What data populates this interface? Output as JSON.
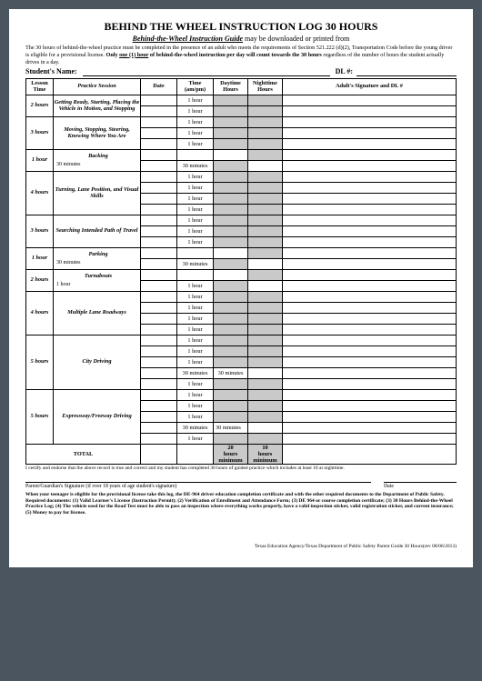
{
  "title": "BEHIND THE WHEEL INSTRUCTION LOG 30 HOURS",
  "subtitle_pre": "Behind-the-Wheel Instruction Guide",
  "subtitle_post": " may be downloaded or printed from",
  "intro": "The 30 hours of behind-the-wheel practice must be completed in the presence of an adult who meets the requirements of Section 521.222 (d)(2), Transportation Code before the young driver is eligible for a provisional license.  Only one (1) hour of behind-the-wheel instruction per day will count towards the 30 hours regardless of the number of hours the student actually drives in a day.",
  "student_name_label": "Student's Name:",
  "dl_label": "DL #:",
  "headers": {
    "lesson": "Lesson Time",
    "session": "Practice Session",
    "date": "Date",
    "time": "Time (am/pm)",
    "day": "Daytime Hours",
    "night": "Nighttime Hours",
    "sig": "Adult's Signature and DL #"
  },
  "lessons": [
    {
      "time": "2 hours",
      "title": "Getting Ready, Starting, Placing the Vehicle in Motion, and Stopping",
      "rows": [
        {
          "t": "1 hour",
          "d": true,
          "n": true
        },
        {
          "t": "1 hour",
          "d": true,
          "n": true
        }
      ]
    },
    {
      "time": "3 hours",
      "title": "Moving, Stopping, Steering, Knowing Where You Are",
      "rows": [
        {
          "t": "1 hour",
          "d": true,
          "n": true
        },
        {
          "t": "1 hour",
          "d": true,
          "n": true
        },
        {
          "t": "1 hour",
          "d": true,
          "n": true
        }
      ]
    },
    {
      "time": "1 hour",
      "title": "Backing",
      "sub": "30 minutes",
      "rows": [
        {
          "t": "",
          "d": false,
          "n": true
        },
        {
          "t": "30 minutes",
          "d": true,
          "n": false
        }
      ]
    },
    {
      "time": "4 hours",
      "title": "Turning, Lane Position, and Visual Skills",
      "rows": [
        {
          "t": "1 hour",
          "d": true,
          "n": true
        },
        {
          "t": "1 hour",
          "d": true,
          "n": true
        },
        {
          "t": "1 hour",
          "d": true,
          "n": true
        },
        {
          "t": "1 hour",
          "d": true,
          "n": true
        }
      ]
    },
    {
      "time": "3 hours",
      "title": "Searching Intended Path of Travel",
      "rows": [
        {
          "t": "1 hour",
          "d": true,
          "n": true
        },
        {
          "t": "1 hour",
          "d": true,
          "n": true
        },
        {
          "t": "1 hour",
          "d": true,
          "n": true
        }
      ]
    },
    {
      "time": "1 hour",
      "title": "Parking",
      "sub": "30 minutes",
      "rows": [
        {
          "t": "",
          "d": false,
          "n": true
        },
        {
          "t": "30 minutes",
          "d": true,
          "n": false
        }
      ]
    },
    {
      "time": "2 hours",
      "title": "Turnabouts",
      "sub": "1 hour",
      "rows": [
        {
          "t": "",
          "d": false,
          "n": true
        },
        {
          "t": "1 hour",
          "d": true,
          "n": false
        }
      ]
    },
    {
      "time": "4 hours",
      "title": "Multiple Lane Roadways",
      "rows": [
        {
          "t": "1 hour",
          "d": true,
          "n": true
        },
        {
          "t": "1 hour",
          "d": true,
          "n": true
        },
        {
          "t": "1 hour",
          "d": true,
          "n": true
        },
        {
          "t": "1 hour",
          "d": true,
          "n": true
        }
      ]
    },
    {
      "time": "5 hours",
      "title": "City Driving",
      "rows": [
        {
          "t": "1 hour",
          "d": true,
          "n": true
        },
        {
          "t": "1 hour",
          "d": true,
          "n": true
        },
        {
          "t": "1 hour",
          "d": true,
          "n": true
        },
        {
          "t": "30 minutes",
          "t2": "30 minutes",
          "d": false,
          "n": false
        },
        {
          "t": "1 hour",
          "d": true,
          "n": true
        }
      ]
    },
    {
      "time": "5 hours",
      "title": "Expressway/Freeway Driving",
      "rows": [
        {
          "t": "1 hour",
          "d": true,
          "n": true
        },
        {
          "t": "1 hour",
          "d": true,
          "n": true
        },
        {
          "t": "1 hour",
          "d": true,
          "n": true
        },
        {
          "t": "30 minutes",
          "t2": "30 minutes",
          "spread": true,
          "d": false,
          "n": false
        },
        {
          "t": "1 hour",
          "d": true,
          "n": true
        }
      ]
    }
  ],
  "total": {
    "label": "TOTAL",
    "day": "20 hours minimum",
    "night": "10 hours minimum"
  },
  "certify": "I certify and endorse that the above record is true and correct and my student has completed 30 hours of guided practice which includes at least 10 at nighttime.",
  "sig_parent": "Parent/Guardian's Signature (if over 18 years of age student's signature)",
  "sig_date": "Date",
  "warning": "When your teenager is eligible for the provisional license take this log, the DE-964 driver education completion certificate and with the other required documents to the Department of Public Safety.  Required documents:  (1) Valid Learner's License (Instruction Permit); (2) Verification of Enrollment and Attendance Form; (3) DE 964 or course completion certificate; (3) 30 Hours Behind-the-Wheel Practice Log; (4) The vehicle used for the Road Test must be able to pass an inspection where everything works properly, have a valid inspection sticker, valid registration sticker, and current insurance; (5) Money to pay for license.",
  "footer": "Texas Education Agency/Texas Department of Public Safety   Parent Guide 30 Hours(rev 08/06/2013)"
}
